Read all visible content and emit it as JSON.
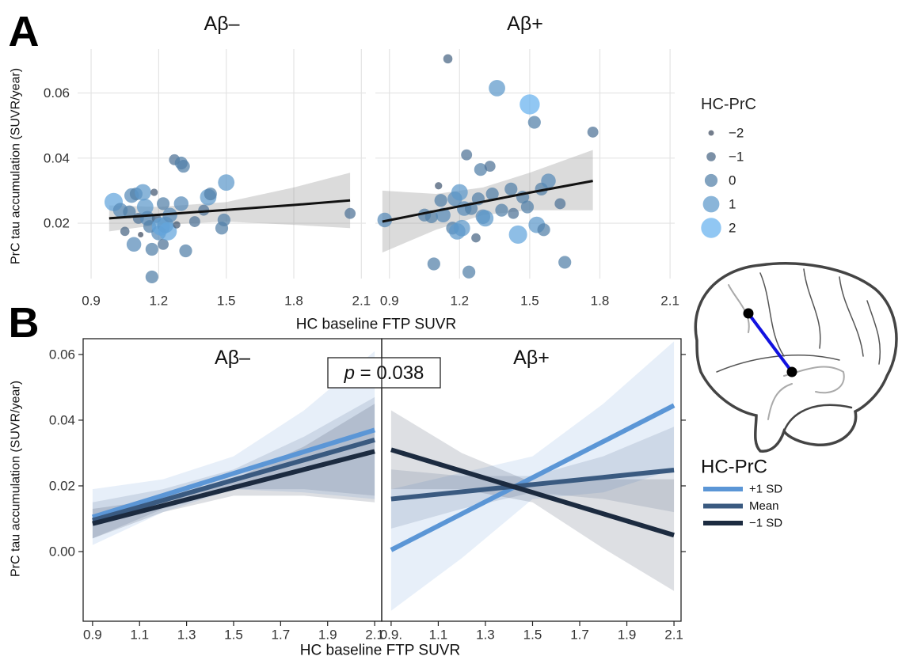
{
  "chart_data": [
    {
      "type": "scatter",
      "panel": "A",
      "facet_title": "Aβ–",
      "ylabel": "PrC tau accumulation (SUVR/year)",
      "xlabel": "HC baseline FTP SUVR",
      "xlim": [
        0.84,
        2.12
      ],
      "ylim": [
        0.003,
        0.0735
      ],
      "xticks": [
        0.9,
        1.2,
        1.5,
        1.8,
        2.1
      ],
      "yticks": [
        0.02,
        0.04,
        0.06
      ],
      "grid": true,
      "x": [
        1.0,
        1.03,
        1.05,
        1.07,
        1.08,
        1.09,
        1.1,
        1.11,
        1.12,
        1.13,
        1.14,
        1.15,
        1.16,
        1.17,
        1.17,
        1.18,
        1.19,
        1.2,
        1.21,
        1.22,
        1.22,
        1.23,
        1.24,
        1.25,
        1.27,
        1.28,
        1.3,
        1.3,
        1.31,
        1.32,
        1.36,
        1.4,
        1.42,
        1.43,
        1.48,
        1.49,
        1.5,
        2.05
      ],
      "y": [
        0.0265,
        0.024,
        0.0175,
        0.0235,
        0.0285,
        0.0135,
        0.029,
        0.0215,
        0.0165,
        0.0295,
        0.025,
        0.0215,
        0.019,
        0.0035,
        0.012,
        0.0295,
        0.0215,
        0.017,
        0.019,
        0.0135,
        0.026,
        0.0195,
        0.0175,
        0.0225,
        0.0395,
        0.0195,
        0.026,
        0.0385,
        0.0375,
        0.0115,
        0.0205,
        0.024,
        0.028,
        0.029,
        0.0185,
        0.021,
        0.0325,
        0.023
      ],
      "size": [
        1.5,
        0.5,
        -1,
        0,
        0.5,
        0.5,
        0,
        -0.5,
        -2,
        1,
        1,
        0.5,
        0,
        0,
        0,
        -1.5,
        -1,
        0.5,
        1.5,
        -0.5,
        0,
        1,
        1.5,
        0.5,
        -0.5,
        -1.5,
        0.5,
        0,
        0,
        0,
        -0.5,
        -0.5,
        1,
        0,
        0,
        0,
        1,
        -0.5
      ],
      "fit": {
        "color": "#111111",
        "x": [
          0.98,
          1.2,
          1.5,
          1.8,
          2.05
        ],
        "y": [
          0.0215,
          0.0226,
          0.0241,
          0.0256,
          0.027
        ],
        "lower": [
          0.0175,
          0.0195,
          0.0205,
          0.0195,
          0.0185
        ],
        "upper": [
          0.0255,
          0.025,
          0.0265,
          0.031,
          0.0355
        ]
      },
      "size_legend": {
        "title": "HC-PrC",
        "color_range": [
          "#3d4b60",
          "#67b2ef"
        ],
        "values": [
          {
            "value": -2,
            "label": "−2"
          },
          {
            "value": -1,
            "label": "−1"
          },
          0,
          1,
          2
        ]
      }
    },
    {
      "type": "scatter",
      "facet_title": "Aβ+",
      "xlim": [
        0.84,
        2.12
      ],
      "ylim": [
        0.003,
        0.0735
      ],
      "xticks": [
        0.9,
        1.2,
        1.5,
        1.8,
        2.1
      ],
      "yticks": [
        0.02,
        0.04,
        0.06
      ],
      "grid": true,
      "x": [
        0.88,
        1.05,
        1.08,
        1.09,
        1.11,
        1.12,
        1.13,
        1.15,
        1.17,
        1.18,
        1.19,
        1.2,
        1.21,
        1.22,
        1.23,
        1.24,
        1.25,
        1.27,
        1.28,
        1.29,
        1.3,
        1.31,
        1.33,
        1.34,
        1.36,
        1.38,
        1.42,
        1.43,
        1.45,
        1.47,
        1.49,
        1.5,
        1.52,
        1.53,
        1.55,
        1.56,
        1.58,
        1.63,
        1.65,
        1.77
      ],
      "y": [
        0.021,
        0.0225,
        0.022,
        0.0075,
        0.0315,
        0.027,
        0.0225,
        0.0705,
        0.0185,
        0.0275,
        0.0175,
        0.0295,
        0.0185,
        0.0245,
        0.041,
        0.005,
        0.0245,
        0.0155,
        0.0275,
        0.0365,
        0.022,
        0.0215,
        0.0375,
        0.029,
        0.0615,
        0.024,
        0.0305,
        0.023,
        0.0165,
        0.028,
        0.025,
        0.0565,
        0.051,
        0.0195,
        0.0305,
        0.018,
        0.033,
        0.026,
        0.008,
        0.048
      ],
      "size": [
        0.5,
        0,
        0,
        0,
        -1.5,
        0,
        0.5,
        -1,
        0,
        0.5,
        1,
        1,
        1,
        0.5,
        -0.5,
        0,
        0,
        -1,
        0,
        0,
        0.5,
        1,
        -0.5,
        0,
        1,
        0,
        0,
        -0.5,
        1.5,
        0,
        0,
        2,
        0,
        1,
        0,
        0,
        0.5,
        -0.5,
        0,
        -0.5
      ],
      "fit": {
        "color": "#111111",
        "x": [
          0.87,
          1.1,
          1.3,
          1.5,
          1.77
        ],
        "y": [
          0.0205,
          0.0238,
          0.0266,
          0.0294,
          0.033
        ],
        "lower": [
          0.011,
          0.018,
          0.0225,
          0.024,
          0.024
        ],
        "upper": [
          0.03,
          0.029,
          0.031,
          0.0355,
          0.0425
        ]
      }
    },
    {
      "type": "line",
      "panel": "B",
      "facet_title": "Aβ–",
      "ylabel": "PrC tau accumulation (SUVR/year)",
      "xlabel": "HC baseline FTP SUVR",
      "xlim": [
        0.86,
        2.13
      ],
      "ylim": [
        -0.0212,
        0.0648
      ],
      "xticks": [
        0.9,
        1.1,
        1.3,
        1.5,
        1.7,
        1.9,
        2.1
      ],
      "yticks": [
        {
          "value": 0,
          "label": "0.00"
        },
        0.02,
        0.04,
        0.06
      ],
      "grid": false,
      "annotation": {
        "italic": "p",
        "text": "= 0.038"
      },
      "legend_title": "HC-PrC",
      "x": [
        0.9,
        1.2,
        1.5,
        1.8,
        2.1
      ],
      "series": [
        {
          "name": "+1 SD",
          "color": "#5b96d6",
          "values": [
            0.0105,
            0.0171,
            0.0238,
            0.0304,
            0.037
          ],
          "lower": [
            0.002,
            0.012,
            0.019,
            0.018,
            0.016
          ],
          "upper": [
            0.019,
            0.022,
            0.029,
            0.043,
            0.061
          ]
        },
        {
          "name": "Mean",
          "color": "#3a5a80",
          "values": [
            0.0095,
            0.0156,
            0.0218,
            0.0279,
            0.034
          ],
          "lower": [
            0.004,
            0.013,
            0.019,
            0.019,
            0.017
          ],
          "upper": [
            0.015,
            0.019,
            0.025,
            0.035,
            0.047
          ]
        },
        {
          "name": "−1 SD",
          "color": "#1c2b40",
          "values": [
            0.0085,
            0.014,
            0.0195,
            0.025,
            0.0305
          ],
          "lower": [
            0.004,
            0.012,
            0.017,
            0.017,
            0.015
          ],
          "upper": [
            0.013,
            0.016,
            0.022,
            0.032,
            0.045
          ]
        }
      ]
    },
    {
      "type": "line",
      "facet_title": "Aβ+",
      "xlim": [
        0.86,
        2.13
      ],
      "ylim": [
        -0.0212,
        0.0648
      ],
      "xticks": [
        {
          "value": 0.9,
          "label": "0.9."
        },
        1.1,
        1.3,
        1.5,
        1.7,
        1.9,
        2.1
      ],
      "yticks": [
        0,
        0.02,
        0.04,
        0.06
      ],
      "grid": false,
      "x": [
        0.9,
        1.2,
        1.5,
        1.8,
        2.1
      ],
      "series": [
        {
          "color": "#5b96d6",
          "values": [
            0.0005,
            0.0115,
            0.0225,
            0.0335,
            0.0445
          ],
          "lower": [
            -0.018,
            -0.002,
            0.016,
            0.018,
            0.025
          ],
          "upper": [
            0.019,
            0.024,
            0.029,
            0.045,
            0.064
          ]
        },
        {
          "color": "#3a5a80",
          "values": [
            0.016,
            0.0182,
            0.0204,
            0.0226,
            0.0248
          ],
          "lower": [
            0.007,
            0.013,
            0.018,
            0.016,
            0.012
          ],
          "upper": [
            0.025,
            0.023,
            0.023,
            0.029,
            0.038
          ]
        },
        {
          "color": "#1c2b40",
          "values": [
            0.031,
            0.0245,
            0.018,
            0.0115,
            0.005
          ],
          "lower": [
            0.019,
            0.019,
            0.015,
            0.001,
            -0.012
          ],
          "upper": [
            0.043,
            0.03,
            0.021,
            0.022,
            0.022
          ]
        }
      ]
    }
  ]
}
